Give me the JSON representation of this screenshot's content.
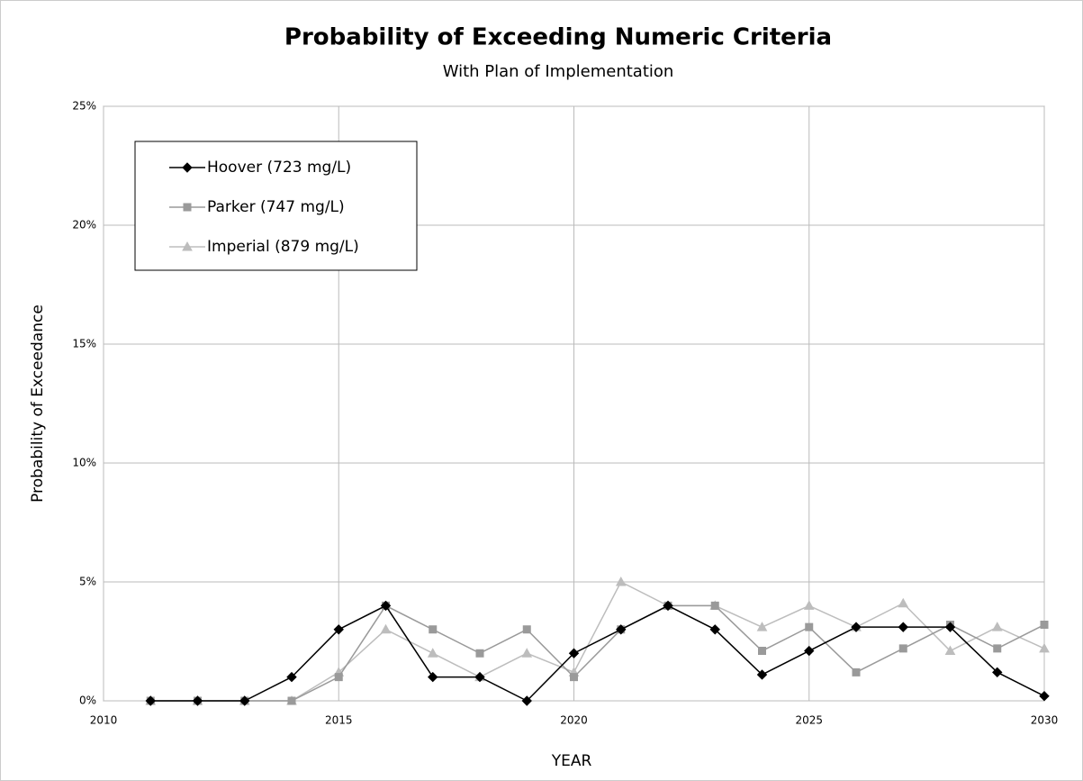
{
  "chart_data": {
    "type": "line",
    "title": "Probability of Exceeding Numeric Criteria",
    "subtitle": "With Plan of Implementation",
    "x_label": "YEAR",
    "y_label": "Probability of Exceedance",
    "x": [
      2011,
      2012,
      2013,
      2014,
      2015,
      2016,
      2017,
      2018,
      2019,
      2020,
      2021,
      2022,
      2023,
      2024,
      2025,
      2026,
      2027,
      2028,
      2029,
      2030
    ],
    "series": [
      {
        "name": "Hoover (723 mg/L)",
        "color": "#000000",
        "marker": "diamond",
        "values": [
          0,
          0,
          0,
          1,
          3,
          4,
          1,
          1,
          0,
          2,
          3,
          4,
          3,
          1.1,
          2.1,
          3.1,
          3.1,
          3.1,
          1.2,
          0.2
        ]
      },
      {
        "name": "Parker (747 mg/L)",
        "color": "#9a9a9a",
        "marker": "square",
        "values": [
          0,
          0,
          0,
          0,
          1,
          4,
          3,
          2,
          3,
          1,
          3,
          4,
          4,
          2.1,
          3.1,
          1.2,
          2.2,
          3.2,
          2.2,
          3.2
        ]
      },
      {
        "name": "Imperial (879 mg/L)",
        "color": "#bdbdbd",
        "marker": "triangle",
        "values": [
          0,
          0,
          0,
          0,
          1.2,
          3,
          2,
          1,
          2,
          1.2,
          5,
          4,
          4,
          3.1,
          4,
          3.1,
          4.1,
          2.1,
          3.1,
          2.2
        ]
      }
    ],
    "xlim": [
      2010,
      2030
    ],
    "xticks": [
      2010,
      2015,
      2020,
      2025,
      2030
    ],
    "ylim": [
      0,
      25
    ],
    "yticks": [
      {
        "value": 0,
        "label": "0%"
      },
      {
        "value": 5,
        "label": "5%"
      },
      {
        "value": 10,
        "label": "10%"
      },
      {
        "value": 15,
        "label": "15%"
      },
      {
        "value": 20,
        "label": "20%"
      },
      {
        "value": 25,
        "label": "25%"
      }
    ],
    "grid": true,
    "legend": "upper left"
  }
}
